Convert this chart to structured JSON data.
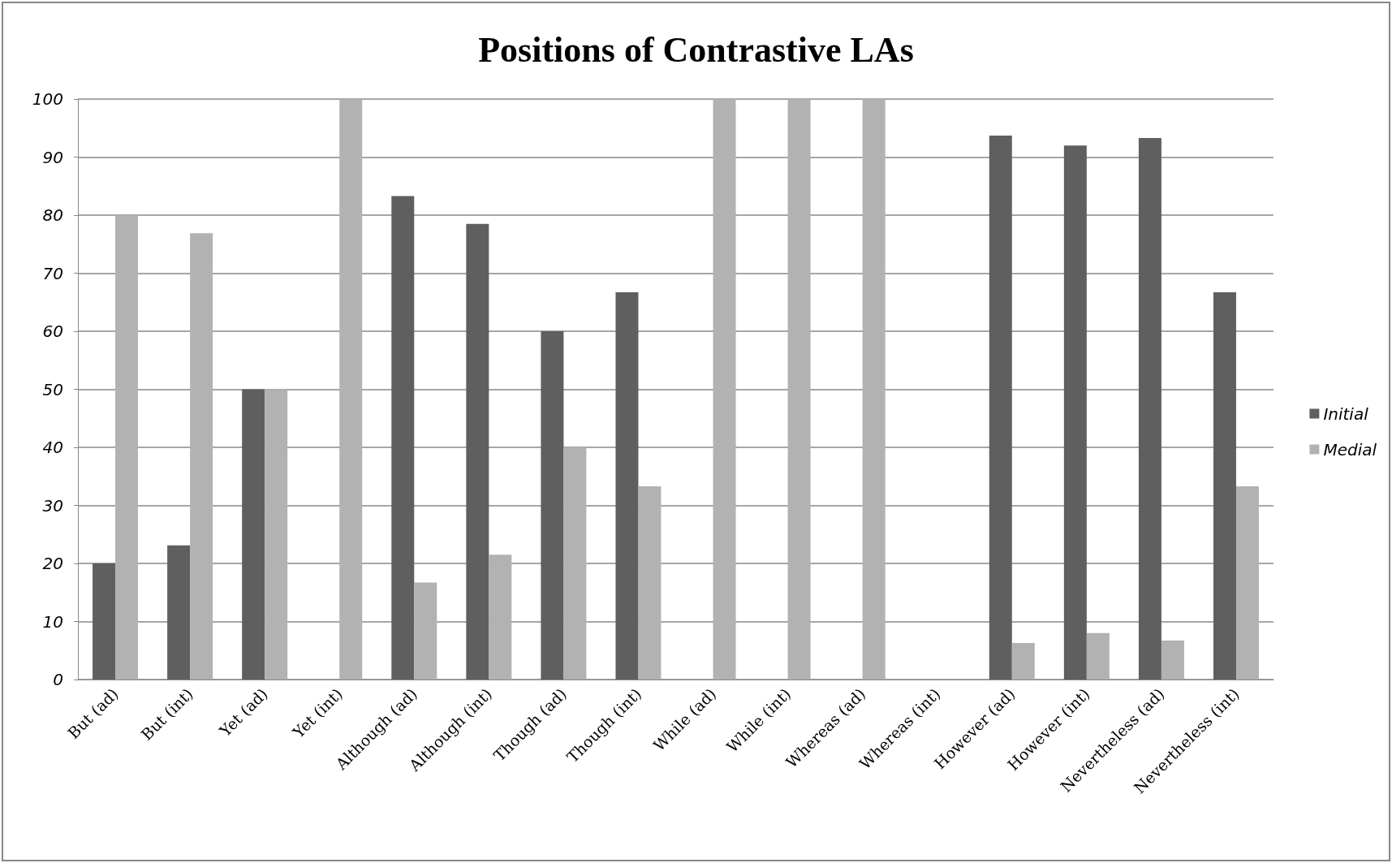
{
  "chart_data": {
    "type": "bar",
    "title": "Positions of Contrastive LAs",
    "categories": [
      "But (ad)",
      "But (int)",
      "Yet (ad)",
      "Yet (int)",
      "Although (ad)",
      "Although (int)",
      "Though (ad)",
      "Though (int)",
      "While (ad)",
      "While (int)",
      "Whereas (ad)",
      "Whereas (int)",
      "However (ad)",
      "However (int)",
      "Nevertheless (ad)",
      "Nevertheless (int)"
    ],
    "series": [
      {
        "name": "Initial",
        "color": "#5f5f5f",
        "values": [
          20,
          23.1,
          50,
          0,
          83.3,
          78.5,
          60,
          66.7,
          0,
          0,
          0,
          0,
          93.7,
          92,
          93.3,
          66.7
        ]
      },
      {
        "name": "Medial",
        "color": "#b2b2b2",
        "values": [
          80,
          76.9,
          50,
          100,
          16.7,
          21.5,
          40,
          33.3,
          100,
          100,
          100,
          0,
          6.3,
          8,
          6.7,
          33.3
        ]
      }
    ],
    "ylim": [
      0,
      100
    ],
    "yticks": [
      0,
      10,
      20,
      30,
      40,
      50,
      60,
      70,
      80,
      90,
      100
    ],
    "grid": "y",
    "legend": "right"
  }
}
